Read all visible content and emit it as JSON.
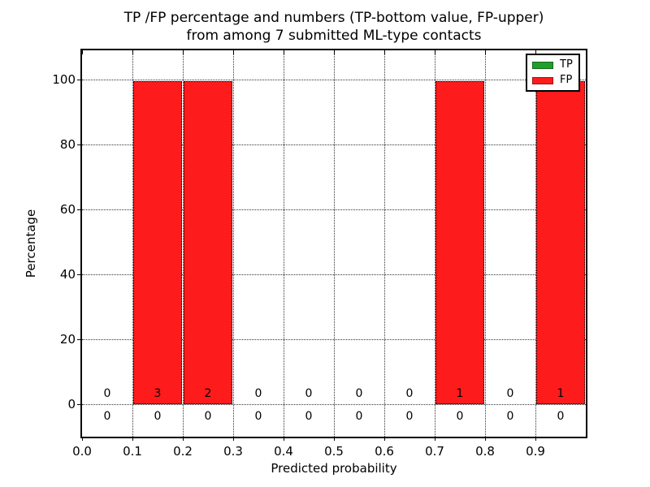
{
  "figure": {
    "title_line1": "TP /FP percentage and numbers (TP-bottom value, FP-upper)",
    "title_line2": "from among 7 submitted ML-type contacts"
  },
  "legend": {
    "items": [
      {
        "label": "TP",
        "color": "#1fa02c"
      },
      {
        "label": "FP",
        "color": "#fe1b1b"
      }
    ]
  },
  "chart_data": {
    "type": "bar",
    "title": "TP /FP percentage and numbers (TP-bottom value, FP-upper) from among 7 submitted ML-type contacts",
    "xlabel": "Predicted probability",
    "ylabel": "Percentage",
    "xlim": [
      0.0,
      1.0
    ],
    "ylim": [
      -10,
      109
    ],
    "xticks": [
      "0.0",
      "0.1",
      "0.2",
      "0.3",
      "0.4",
      "0.5",
      "0.6",
      "0.7",
      "0.8",
      "0.9"
    ],
    "yticks": [
      0,
      20,
      40,
      60,
      80,
      100
    ],
    "grid": true,
    "legend_position": "upper right",
    "bin_edges": [
      0.0,
      0.1,
      0.2,
      0.3,
      0.4,
      0.5,
      0.6,
      0.7,
      0.8,
      0.9,
      1.0
    ],
    "series": [
      {
        "name": "TP",
        "color": "#1fa02c",
        "percent": [
          0,
          0,
          0,
          0,
          0,
          0,
          0,
          0,
          0,
          0
        ],
        "counts": [
          0,
          0,
          0,
          0,
          0,
          0,
          0,
          0,
          0,
          0
        ]
      },
      {
        "name": "FP",
        "color": "#fe1b1b",
        "percent": [
          0,
          99.5,
          99.5,
          0,
          0,
          0,
          0,
          99.5,
          0,
          99.5
        ],
        "counts": [
          0,
          3,
          2,
          0,
          0,
          0,
          0,
          1,
          0,
          1
        ]
      }
    ]
  }
}
